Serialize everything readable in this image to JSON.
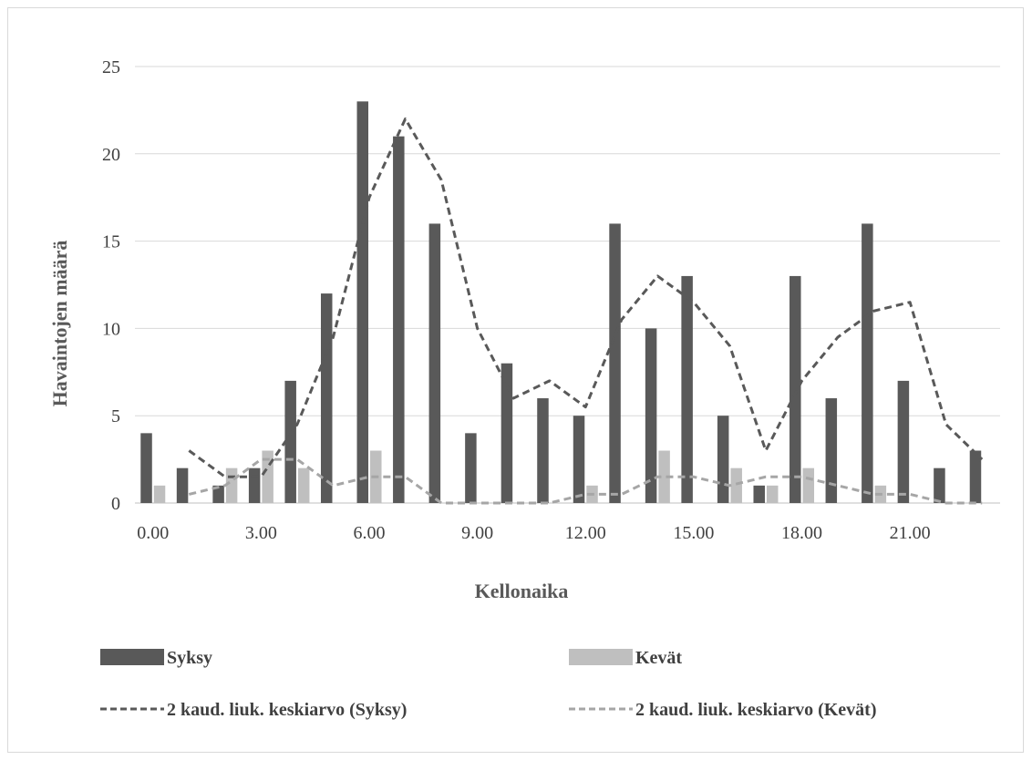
{
  "chart_data": {
    "type": "bar",
    "title": "",
    "xlabel": "Kellonaika",
    "ylabel": "Havaintojen määrä",
    "ylim": [
      0,
      25
    ],
    "yticks": [
      "0",
      "5",
      "10",
      "15",
      "20",
      "25"
    ],
    "x_tick_labels": [
      "0.00",
      "3.00",
      "6.00",
      "9.00",
      "12.00",
      "15.00",
      "18.00",
      "21.00"
    ],
    "categories": [
      "0",
      "1",
      "2",
      "3",
      "4",
      "5",
      "6",
      "7",
      "8",
      "9",
      "10",
      "11",
      "12",
      "13",
      "14",
      "15",
      "16",
      "17",
      "18",
      "19",
      "20",
      "21",
      "22",
      "23"
    ],
    "grid": true,
    "legend_position": "bottom",
    "series": [
      {
        "name": "Syksy",
        "kind": "bar",
        "color": "#595959",
        "values": [
          4,
          2,
          1,
          2,
          7,
          12,
          23,
          21,
          16,
          4,
          8,
          6,
          5,
          16,
          10,
          13,
          5,
          1,
          13,
          6,
          16,
          7,
          2,
          3
        ]
      },
      {
        "name": "Kevät",
        "kind": "bar",
        "color": "#bfbfbf",
        "values": [
          1,
          0,
          2,
          3,
          2,
          0,
          3,
          0,
          0,
          0,
          0,
          0,
          1,
          0,
          3,
          0,
          2,
          1,
          2,
          0,
          1,
          0,
          0,
          0
        ]
      },
      {
        "name": "2 kaud. liuk. keskiarvo (Syksy)",
        "kind": "line",
        "color": "#595959",
        "dash": true,
        "values": [
          null,
          3,
          1.5,
          1.5,
          4.5,
          9.5,
          17.5,
          22,
          18.5,
          10,
          6,
          7,
          5.5,
          10.5,
          13,
          11.5,
          9,
          3,
          7,
          9.5,
          11,
          11.5,
          4.5,
          2.5
        ]
      },
      {
        "name": "2 kaud. liuk. keskiarvo (Kevät)",
        "kind": "line",
        "color": "#a6a6a6",
        "dash": true,
        "values": [
          null,
          0.5,
          1,
          2.5,
          2.5,
          1,
          1.5,
          1.5,
          0,
          0,
          0,
          0,
          0.5,
          0.5,
          1.5,
          1.5,
          1,
          1.5,
          1.5,
          1,
          0.5,
          0.5,
          0,
          0
        ]
      }
    ]
  },
  "legend": {
    "syksy": "Syksy",
    "kevat": "Kevät",
    "avg_syksy": "2 kaud. liuk. keskiarvo (Syksy)",
    "avg_kevat": "2 kaud. liuk. keskiarvo (Kevät)"
  }
}
